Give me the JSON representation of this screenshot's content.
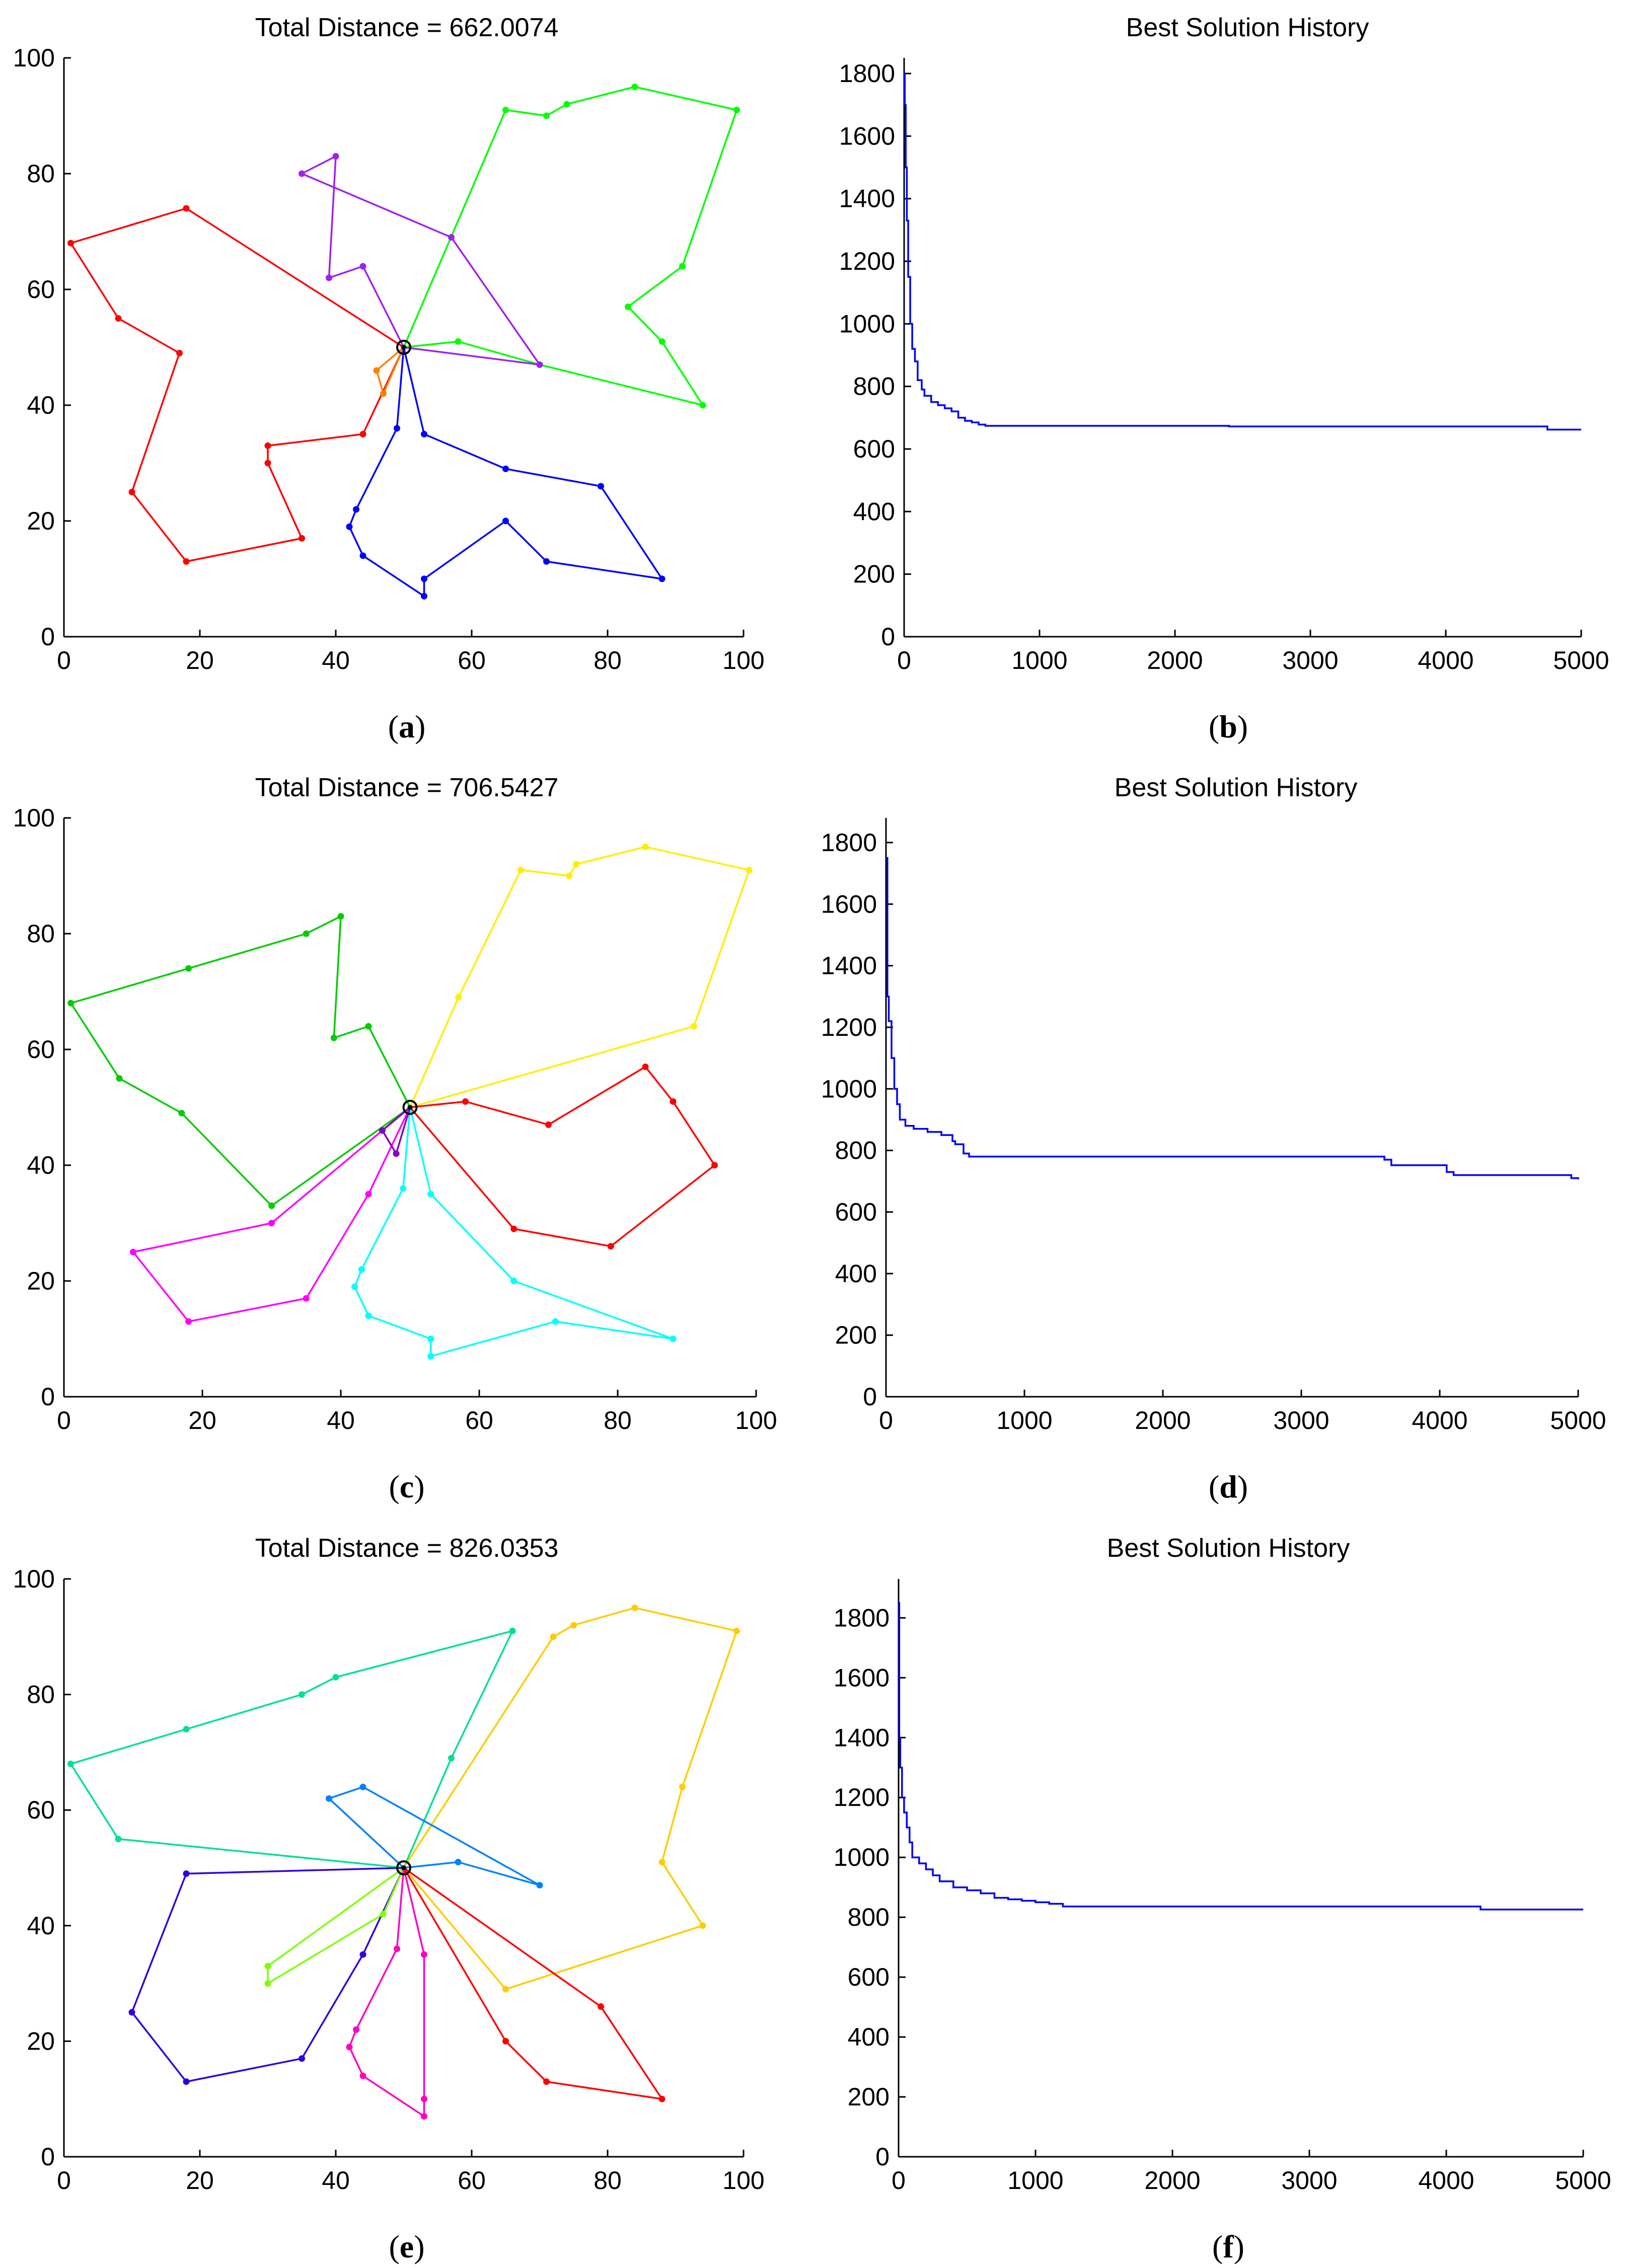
{
  "panels": [
    {
      "id": "a",
      "type": "route",
      "title": "Total Distance = 662.0074",
      "label": "a",
      "depot": [
        50,
        50
      ],
      "routes": [
        {
          "color": "#ff0000",
          "points": [
            [
              50,
              50
            ],
            [
              18,
              74
            ],
            [
              1,
              68
            ],
            [
              8,
              55
            ],
            [
              17,
              49
            ],
            [
              10,
              25
            ],
            [
              18,
              13
            ],
            [
              35,
              17
            ],
            [
              30,
              30
            ],
            [
              30,
              33
            ],
            [
              44,
              35
            ],
            [
              50,
              50
            ]
          ]
        },
        {
          "color": "#ff8000",
          "points": [
            [
              50,
              50
            ],
            [
              46,
              46
            ],
            [
              47,
              42
            ],
            [
              50,
              50
            ]
          ]
        },
        {
          "color": "#00ff00",
          "points": [
            [
              50,
              50
            ],
            [
              65,
              91
            ],
            [
              71,
              90
            ],
            [
              74,
              92
            ],
            [
              84,
              95
            ],
            [
              99,
              91
            ],
            [
              91,
              64
            ],
            [
              83,
              57
            ],
            [
              88,
              51
            ],
            [
              94,
              40
            ],
            [
              70,
              47
            ],
            [
              58,
              51
            ],
            [
              50,
              50
            ]
          ]
        },
        {
          "color": "#a020f0",
          "points": [
            [
              50,
              50
            ],
            [
              44,
              64
            ],
            [
              39,
              62
            ],
            [
              40,
              83
            ],
            [
              35,
              80
            ],
            [
              57,
              69
            ],
            [
              70,
              47
            ],
            [
              50,
              50
            ]
          ]
        },
        {
          "color": "#0000ff",
          "points": [
            [
              50,
              50
            ],
            [
              49,
              36
            ],
            [
              43,
              22
            ],
            [
              42,
              19
            ],
            [
              44,
              14
            ],
            [
              53,
              7
            ],
            [
              53,
              10
            ],
            [
              65,
              20
            ],
            [
              71,
              13
            ],
            [
              88,
              10
            ],
            [
              79,
              26
            ],
            [
              65,
              29
            ],
            [
              53,
              35
            ],
            [
              50,
              50
            ]
          ]
        }
      ],
      "xlim": [
        0,
        100
      ],
      "ylim": [
        0,
        100
      ],
      "xticks": [
        0,
        20,
        40,
        60,
        80,
        100
      ],
      "yticks": [
        0,
        20,
        40,
        60,
        80,
        100
      ]
    },
    {
      "id": "b",
      "type": "line",
      "title": "Best Solution History",
      "label": "b",
      "series_color": "#0000ff",
      "x": [
        0,
        5,
        12,
        20,
        30,
        45,
        60,
        80,
        100,
        130,
        150,
        200,
        250,
        300,
        350,
        400,
        450,
        500,
        550,
        600,
        1000,
        2300,
        2400,
        4000,
        4700,
        4750,
        5000
      ],
      "y": [
        1800,
        1700,
        1500,
        1330,
        1150,
        1000,
        920,
        880,
        820,
        790,
        770,
        750,
        740,
        730,
        720,
        700,
        690,
        685,
        678,
        674,
        674,
        674,
        672,
        672,
        672,
        662,
        662
      ],
      "xlim": [
        0,
        5000
      ],
      "ylim": [
        0,
        1850
      ],
      "xticks": [
        0,
        1000,
        2000,
        3000,
        4000,
        5000
      ],
      "yticks": [
        0,
        200,
        400,
        600,
        800,
        1000,
        1200,
        1400,
        1600,
        1800
      ]
    },
    {
      "id": "c",
      "type": "route",
      "title": "Total Distance = 706.5427",
      "label": "c",
      "depot": [
        50,
        50
      ],
      "routes": [
        {
          "color": "#00cc00",
          "points": [
            [
              50,
              50
            ],
            [
              44,
              64
            ],
            [
              39,
              62
            ],
            [
              40,
              83
            ],
            [
              35,
              80
            ],
            [
              18,
              74
            ],
            [
              1,
              68
            ],
            [
              8,
              55
            ],
            [
              17,
              49
            ],
            [
              30,
              33
            ],
            [
              50,
              50
            ]
          ]
        },
        {
          "color": "#ffee00",
          "points": [
            [
              50,
              50
            ],
            [
              57,
              69
            ],
            [
              66,
              91
            ],
            [
              73,
              90
            ],
            [
              74,
              92
            ],
            [
              84,
              95
            ],
            [
              99,
              91
            ],
            [
              91,
              64
            ],
            [
              50,
              50
            ]
          ]
        },
        {
          "color": "#ff0000",
          "points": [
            [
              50,
              50
            ],
            [
              58,
              51
            ],
            [
              70,
              47
            ],
            [
              84,
              57
            ],
            [
              88,
              51
            ],
            [
              94,
              40
            ],
            [
              79,
              26
            ],
            [
              65,
              29
            ],
            [
              50,
              50
            ]
          ]
        },
        {
          "color": "#ff00ff",
          "points": [
            [
              50,
              50
            ],
            [
              30,
              30
            ],
            [
              10,
              25
            ],
            [
              18,
              13
            ],
            [
              35,
              17
            ],
            [
              44,
              35
            ],
            [
              50,
              50
            ]
          ]
        },
        {
          "color": "#00ffff",
          "points": [
            [
              50,
              50
            ],
            [
              49,
              36
            ],
            [
              43,
              22
            ],
            [
              42,
              19
            ],
            [
              44,
              14
            ],
            [
              53,
              10
            ],
            [
              53,
              7
            ],
            [
              71,
              13
            ],
            [
              88,
              10
            ],
            [
              65,
              20
            ],
            [
              53,
              35
            ],
            [
              50,
              50
            ]
          ]
        },
        {
          "color": "#8000c0",
          "points": [
            [
              50,
              50
            ],
            [
              48,
              42
            ],
            [
              46,
              46
            ],
            [
              50,
              50
            ]
          ]
        }
      ],
      "xlim": [
        0,
        100
      ],
      "ylim": [
        0,
        100
      ],
      "xticks": [
        0,
        20,
        40,
        60,
        80,
        100
      ],
      "yticks": [
        0,
        20,
        40,
        60,
        80,
        100
      ]
    },
    {
      "id": "d",
      "type": "line",
      "title": "Best Solution History",
      "label": "d",
      "series_color": "#0000ff",
      "x": [
        0,
        10,
        20,
        40,
        60,
        80,
        100,
        140,
        200,
        300,
        400,
        480,
        500,
        560,
        600,
        2800,
        3600,
        3650,
        4000,
        4050,
        4100,
        4900,
        4950,
        5000
      ],
      "y": [
        1750,
        1300,
        1220,
        1100,
        1000,
        950,
        900,
        880,
        870,
        860,
        850,
        830,
        820,
        790,
        780,
        780,
        770,
        752,
        752,
        730,
        720,
        720,
        710,
        706
      ],
      "xlim": [
        0,
        5000
      ],
      "ylim": [
        0,
        1880
      ],
      "xticks": [
        0,
        1000,
        2000,
        3000,
        4000,
        5000
      ],
      "yticks": [
        0,
        200,
        400,
        600,
        800,
        1000,
        1200,
        1400,
        1600,
        1800
      ]
    },
    {
      "id": "e",
      "type": "route",
      "title": "Total Distance = 826.0353",
      "label": "e",
      "depot": [
        50,
        50
      ],
      "routes": [
        {
          "color": "#00e090",
          "points": [
            [
              50,
              50
            ],
            [
              8,
              55
            ],
            [
              1,
              68
            ],
            [
              18,
              74
            ],
            [
              35,
              80
            ],
            [
              40,
              83
            ],
            [
              66,
              91
            ],
            [
              57,
              69
            ],
            [
              50,
              50
            ]
          ]
        },
        {
          "color": "#ffcc00",
          "points": [
            [
              50,
              50
            ],
            [
              72,
              90
            ],
            [
              75,
              92
            ],
            [
              84,
              95
            ],
            [
              99,
              91
            ],
            [
              91,
              64
            ],
            [
              88,
              51
            ],
            [
              94,
              40
            ],
            [
              65,
              29
            ],
            [
              50,
              50
            ]
          ]
        },
        {
          "color": "#0080ff",
          "points": [
            [
              50,
              50
            ],
            [
              39,
              62
            ],
            [
              44,
              64
            ],
            [
              70,
              47
            ],
            [
              58,
              51
            ],
            [
              50,
              50
            ]
          ]
        },
        {
          "color": "#3000e0",
          "points": [
            [
              50,
              50
            ],
            [
              18,
              49
            ],
            [
              10,
              25
            ],
            [
              18,
              13
            ],
            [
              35,
              17
            ],
            [
              44,
              35
            ],
            [
              50,
              50
            ]
          ]
        },
        {
          "color": "#80ff00",
          "points": [
            [
              50,
              50
            ],
            [
              30,
              33
            ],
            [
              30,
              30
            ],
            [
              47,
              42
            ],
            [
              50,
              50
            ]
          ]
        },
        {
          "color": "#ff00c0",
          "points": [
            [
              50,
              50
            ],
            [
              49,
              36
            ],
            [
              43,
              22
            ],
            [
              42,
              19
            ],
            [
              44,
              14
            ],
            [
              53,
              7
            ],
            [
              53,
              10
            ],
            [
              53,
              35
            ],
            [
              50,
              50
            ]
          ]
        },
        {
          "color": "#ff0000",
          "points": [
            [
              50,
              50
            ],
            [
              79,
              26
            ],
            [
              88,
              10
            ],
            [
              71,
              13
            ],
            [
              65,
              20
            ],
            [
              50,
              50
            ]
          ]
        }
      ],
      "xlim": [
        0,
        100
      ],
      "ylim": [
        0,
        100
      ],
      "xticks": [
        0,
        20,
        40,
        60,
        80,
        100
      ],
      "yticks": [
        0,
        20,
        40,
        60,
        80,
        100
      ]
    },
    {
      "id": "f",
      "type": "line",
      "title": "Best Solution History",
      "label": "f",
      "series_color": "#0000ff",
      "x": [
        0,
        5,
        12,
        25,
        40,
        60,
        80,
        100,
        150,
        200,
        250,
        300,
        400,
        450,
        500,
        600,
        700,
        800,
        900,
        1000,
        1100,
        1200,
        2000,
        4200,
        4250,
        5000
      ],
      "y": [
        1850,
        1400,
        1300,
        1200,
        1150,
        1100,
        1050,
        1000,
        980,
        960,
        940,
        920,
        900,
        900,
        890,
        880,
        865,
        860,
        855,
        850,
        845,
        836,
        836,
        836,
        826,
        826
      ],
      "xlim": [
        0,
        5000
      ],
      "ylim": [
        0,
        1930
      ],
      "xticks": [
        0,
        1000,
        2000,
        3000,
        4000,
        5000
      ],
      "yticks": [
        0,
        200,
        400,
        600,
        800,
        1000,
        1200,
        1400,
        1600,
        1800
      ]
    }
  ]
}
